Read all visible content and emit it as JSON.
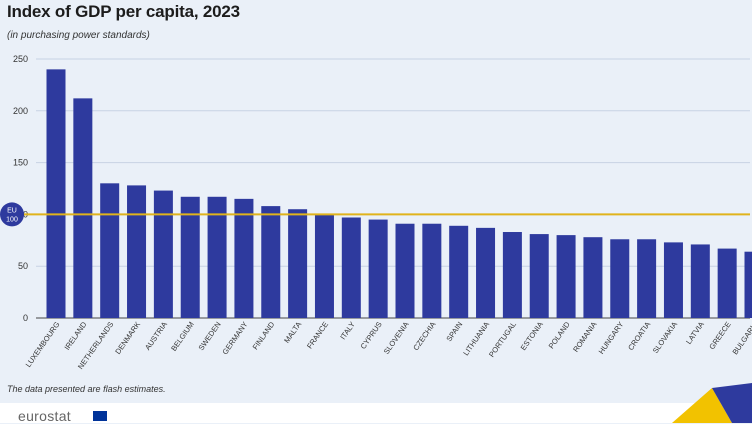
{
  "title": "Index of GDP per capita, 2023",
  "subtitle": "(in purchasing power standards)",
  "footnote": "The data presented are flash estimates.",
  "brand": "eurostat",
  "reference_label": [
    "EU",
    "100"
  ],
  "colors": {
    "bar": "#2e3a9e",
    "reference_line": "#e0b31c",
    "grid": "#c7d2e4",
    "badge": "#2e3a9e"
  },
  "chart_data": {
    "type": "bar",
    "title": "Index of GDP per capita, 2023",
    "subtitle": "(in purchasing power standards)",
    "categories": [
      "LUXEMBOURG",
      "IRELAND",
      "NETHERLANDS",
      "DENMARK",
      "AUSTRIA",
      "BELGIUM",
      "SWEDEN",
      "GERMANY",
      "FINLAND",
      "MALTA",
      "FRANCE",
      "ITALY",
      "CYPRUS",
      "SLOVENIA",
      "CZECHIA",
      "SPAIN",
      "LITHUANIA",
      "PORTUGAL",
      "ESTONIA",
      "POLAND",
      "ROMANIA",
      "HUNGARY",
      "CROATIA",
      "SLOVAKIA",
      "LATVIA",
      "GREECE",
      "BULGARIA"
    ],
    "values": [
      240,
      212,
      130,
      128,
      123,
      117,
      117,
      115,
      108,
      105,
      100,
      97,
      95,
      91,
      91,
      89,
      87,
      83,
      81,
      80,
      78,
      76,
      76,
      73,
      71,
      67,
      64
    ],
    "ylim": [
      0,
      250
    ],
    "yticks": [
      0,
      50,
      100,
      150,
      200,
      250
    ],
    "reference_value": 100,
    "grid": true
  }
}
